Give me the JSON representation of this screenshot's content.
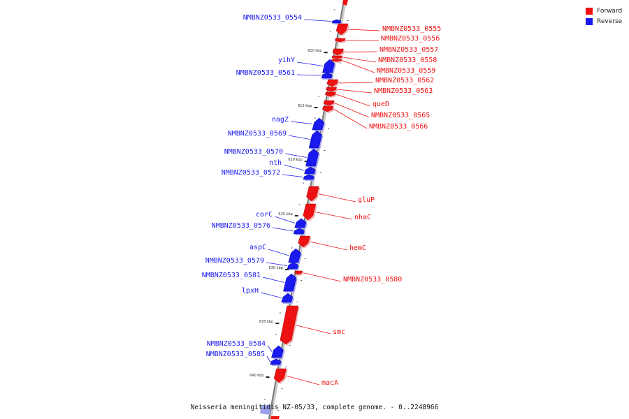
{
  "colors": {
    "forward": "#ee1111",
    "reverse": "#1a1aee",
    "backbone": "#888888"
  },
  "legend": [
    {
      "label": "Forward",
      "color": "#ee1111"
    },
    {
      "label": "Reverse",
      "color": "#1a1aee"
    }
  ],
  "caption": "Neisseria meningitidis NZ-05/33, complete genome. - 0..2248966",
  "ticks": [
    "610 kbp",
    "615 kbp",
    "620 kbp",
    "625 kbp",
    "630 kbp",
    "635 kbp",
    "640 kbp"
  ],
  "genes": [
    {
      "name": "NMBNZ0533_0554",
      "strand": "reverse"
    },
    {
      "name": "NMBNZ0533_0555",
      "strand": "forward"
    },
    {
      "name": "NMBNZ0533_0556",
      "strand": "forward"
    },
    {
      "name": "NMBNZ0533_0557",
      "strand": "forward"
    },
    {
      "name": "NMBNZ0533_0558",
      "strand": "forward"
    },
    {
      "name": "NMBNZ0533_0559",
      "strand": "forward"
    },
    {
      "name": "yihY",
      "strand": "reverse"
    },
    {
      "name": "NMBNZ0533_0561",
      "strand": "reverse"
    },
    {
      "name": "NMBNZ0533_0562",
      "strand": "forward"
    },
    {
      "name": "NMBNZ0533_0563",
      "strand": "forward"
    },
    {
      "name": "queD",
      "strand": "forward"
    },
    {
      "name": "NMBNZ0533_0565",
      "strand": "forward"
    },
    {
      "name": "NMBNZ0533_0566",
      "strand": "forward"
    },
    {
      "name": "nagZ",
      "strand": "reverse"
    },
    {
      "name": "NMBNZ0533_0569",
      "strand": "reverse"
    },
    {
      "name": "NMBNZ0533_0570",
      "strand": "reverse"
    },
    {
      "name": "nth",
      "strand": "reverse"
    },
    {
      "name": "NMBNZ0533_0572",
      "strand": "reverse"
    },
    {
      "name": "gluP",
      "strand": "forward"
    },
    {
      "name": "nhaC",
      "strand": "forward"
    },
    {
      "name": "corC",
      "strand": "reverse"
    },
    {
      "name": "NMBNZ0533_0576",
      "strand": "reverse"
    },
    {
      "name": "hemC",
      "strand": "forward"
    },
    {
      "name": "aspC",
      "strand": "reverse"
    },
    {
      "name": "NMBNZ0533_0579",
      "strand": "reverse"
    },
    {
      "name": "NMBNZ0533_0580",
      "strand": "forward"
    },
    {
      "name": "NMBNZ0533_0581",
      "strand": "reverse"
    },
    {
      "name": "lpxH",
      "strand": "reverse"
    },
    {
      "name": "smc",
      "strand": "forward"
    },
    {
      "name": "NMBNZ0533_0584",
      "strand": "reverse"
    },
    {
      "name": "NMBNZ0533_0585",
      "strand": "reverse"
    },
    {
      "name": "macA",
      "strand": "forward"
    }
  ]
}
